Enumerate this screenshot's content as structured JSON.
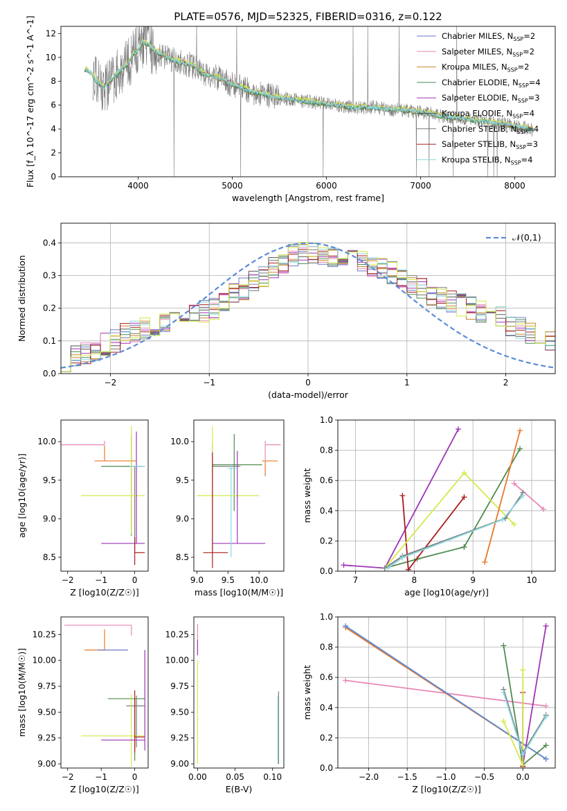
{
  "figure_title": "PLATE=0576, MJD=52325, FIBERID=0316, z=0.122",
  "colors": {
    "chabrier_miles": "#6a79c5",
    "salpeter_miles": "#e887b6",
    "kroupa_miles": "#c8852a",
    "chabrier_elodie": "#4c8a55",
    "salpeter_elodie": "#9c34b7",
    "kroupa_elodie": "#555555",
    "chabrier_stelib": "#7a7a7a",
    "salpeter_stelib": "#a81c1c",
    "kroupa_stelib": "#8dd8e0",
    "green_model": "#4f8a4f",
    "lime_model": "#d4e84a",
    "orange_model": "#e8782a",
    "normal_curve": "#5b8bd6",
    "grid": "#b0b0b0"
  },
  "chart_data": [
    {
      "id": "spectrum",
      "type": "line",
      "title": "PLATE=0576, MJD=52325, FIBERID=0316, z=0.122",
      "xlabel": "wavelength [Angstrom, rest frame]",
      "ylabel": "Flux [f_λ 10^-17 erg cm^-2 s^-1 A^-1]",
      "xlim": [
        3180,
        8430
      ],
      "ylim": [
        0,
        12.6
      ],
      "xticks": [
        4000,
        5000,
        6000,
        7000,
        8000
      ],
      "yticks": [
        0,
        2,
        4,
        6,
        8,
        10,
        12
      ],
      "grid": false,
      "legend_position": "top-right",
      "legend": [
        {
          "label": "Chabrier MILES",
          "sub": "2",
          "color": "#6a79c5"
        },
        {
          "label": "Salpeter MILES",
          "sub": "2",
          "color": "#e887b6"
        },
        {
          "label": "Kroupa MILES",
          "sub": "2",
          "color": "#c8852a"
        },
        {
          "label": "Chabrier ELODIE",
          "sub": "4",
          "color": "#4c8a55"
        },
        {
          "label": "Salpeter ELODIE",
          "sub": "3",
          "color": "#9c34b7"
        },
        {
          "label": "Kroupa ELODIE",
          "sub": "4",
          "color": "#555555"
        },
        {
          "label": "Chabrier STELIB",
          "sub": "4",
          "color": "#7a7a7a"
        },
        {
          "label": "Salpeter STELIB",
          "sub": "3",
          "color": "#a81c1c"
        },
        {
          "label": "Kroupa STELIB",
          "sub": "4",
          "color": "#8dd8e0"
        }
      ],
      "model_x": [
        3430,
        3460,
        3500,
        3560,
        3620,
        3680,
        3750,
        3820,
        3900,
        3950,
        4000,
        4050,
        4100,
        4200,
        4300,
        4400,
        4500,
        4600,
        4700,
        4800,
        4900,
        5000,
        5100,
        5200,
        5300,
        5400,
        5500,
        5600,
        5700,
        5800,
        5900,
        6000,
        6100,
        6200,
        6300,
        6400,
        6500,
        6600,
        6700,
        6800,
        6900,
        7000,
        7100,
        7200,
        7300,
        7400,
        7500,
        7600,
        7700,
        7800,
        7900,
        8000,
        8100,
        8200
      ],
      "model_y": [
        9.0,
        8.9,
        8.7,
        8.0,
        7.5,
        7.8,
        8.4,
        9.0,
        9.5,
        10.3,
        10.6,
        11.3,
        11.1,
        10.4,
        10.0,
        9.7,
        9.5,
        9.2,
        8.6,
        8.4,
        8.2,
        7.7,
        7.5,
        7.1,
        7.0,
        6.8,
        6.6,
        6.5,
        6.4,
        6.3,
        6.2,
        6.1,
        6.0,
        5.9,
        5.8,
        5.8,
        5.8,
        5.7,
        5.6,
        5.6,
        5.5,
        5.4,
        5.3,
        5.1,
        5.0,
        4.9,
        4.8,
        4.7,
        4.6,
        4.5,
        4.4,
        4.2,
        4.1,
        3.9
      ]
    },
    {
      "id": "residuals",
      "type": "histogram",
      "xlabel": "(data-model)/error",
      "ylabel": "Normed distribution",
      "xlim": [
        -2.5,
        2.5
      ],
      "ylim": [
        0,
        0.46
      ],
      "xticks": [
        -2,
        -1,
        0,
        1,
        2
      ],
      "yticks": [
        0.0,
        0.1,
        0.2,
        0.3,
        0.4
      ],
      "grid": true,
      "legend_position": "top-right",
      "legend_label": "𝒩(0,1)",
      "normal_curve": {
        "mu": 0,
        "sigma": 1
      },
      "bin_edges_start": -2.5,
      "bin_width": 0.1,
      "envelope": [
        0.04,
        0.05,
        0.06,
        0.07,
        0.09,
        0.1,
        0.12,
        0.13,
        0.14,
        0.15,
        0.16,
        0.17,
        0.17,
        0.18,
        0.19,
        0.2,
        0.22,
        0.24,
        0.26,
        0.28,
        0.3,
        0.32,
        0.34,
        0.36,
        0.37,
        0.37,
        0.36,
        0.36,
        0.35,
        0.35,
        0.34,
        0.33,
        0.32,
        0.31,
        0.29,
        0.27,
        0.26,
        0.24,
        0.23,
        0.22,
        0.21,
        0.2,
        0.19,
        0.18,
        0.17,
        0.15,
        0.14,
        0.12,
        0.11,
        0.1
      ]
    },
    {
      "id": "age_vs_Z",
      "type": "errorbar",
      "xlabel": "Z [log10(Z/Z☉)]",
      "ylabel": "age  [log10(age/yr)]",
      "xlim": [
        -2.2,
        0.4
      ],
      "ylim": [
        8.32,
        10.28
      ],
      "xticks": [
        -2,
        -1,
        0
      ],
      "yticks": [
        8.5,
        9.0,
        9.5,
        10.0
      ],
      "grid": false,
      "points": [
        {
          "x": -0.9,
          "y": 9.96,
          "xerr": [
            1.3,
            0.0
          ],
          "yerr": [
            0.0,
            0.05
          ],
          "color": "#e887b6"
        },
        {
          "x": -0.9,
          "y": 9.75,
          "xerr": [
            0.3,
            0.95
          ],
          "yerr": [
            0.0,
            0.2
          ],
          "color": "#e8782a"
        },
        {
          "x": -0.1,
          "y": 9.68,
          "xerr": [
            0.9,
            0.3
          ],
          "yerr": [
            0.9,
            0.4
          ],
          "color": "#4f8a4f"
        },
        {
          "x": 0.0,
          "y": 9.68,
          "xerr": [
            0.25,
            0.3
          ],
          "yerr": [
            1.1,
            0.0
          ],
          "color": "#7a7a7a"
        },
        {
          "x": -0.6,
          "y": 9.3,
          "xerr": [
            1.0,
            0.9
          ],
          "yerr": [
            0.0,
            0.0
          ],
          "color": "#d4e84a"
        },
        {
          "x": -0.1,
          "y": 9.3,
          "xerr": [
            0.0,
            0.0
          ],
          "yerr": [
            0.5,
            0.9
          ],
          "color": "#d4e84a"
        },
        {
          "x": 0.05,
          "y": 8.68,
          "xerr": [
            1.05,
            0.25
          ],
          "yerr": [
            0.0,
            1.45
          ],
          "color": "#9c34b7"
        },
        {
          "x": 0.0,
          "y": 8.56,
          "xerr": [
            0.0,
            0.3
          ],
          "yerr": [
            0.16,
            0.2
          ],
          "color": "#a81c1c"
        },
        {
          "x": 0.05,
          "y": 9.68,
          "xerr": [
            0.2,
            0.25
          ],
          "yerr": [
            0.0,
            0.0
          ],
          "color": "#8dd8e0"
        }
      ]
    },
    {
      "id": "age_vs_mass",
      "type": "errorbar",
      "xlabel": "mass [log10(M/M☉)]",
      "ylabel": "",
      "xlim": [
        8.95,
        10.4
      ],
      "ylim": [
        8.32,
        10.28
      ],
      "xticks": [
        9.0,
        9.5,
        10.0
      ],
      "yticks": [
        8.5,
        9.0,
        9.5,
        10.0
      ],
      "grid": false,
      "points": [
        {
          "x": 10.1,
          "y": 9.96,
          "xerr": [
            0.0,
            0.25
          ],
          "yerr": [
            0.2,
            0.05
          ],
          "color": "#e887b6"
        },
        {
          "x": 10.1,
          "y": 9.75,
          "xerr": [
            0.05,
            0.2
          ],
          "yerr": [
            0.2,
            0.0
          ],
          "color": "#e8782a"
        },
        {
          "x": 9.6,
          "y": 9.7,
          "xerr": [
            0.35,
            0.45
          ],
          "yerr": [
            0.6,
            0.4
          ],
          "color": "#4f8a4f"
        },
        {
          "x": 9.25,
          "y": 9.68,
          "xerr": [
            0.0,
            0.45
          ],
          "yerr": [
            1.1,
            0.3
          ],
          "color": "#7a7a7a"
        },
        {
          "x": 9.65,
          "y": 9.3,
          "xerr": [
            0.65,
            0.35
          ],
          "yerr": [
            0.0,
            0.0
          ],
          "color": "#d4e84a"
        },
        {
          "x": 9.25,
          "y": 9.3,
          "xerr": [
            0.0,
            0.0
          ],
          "yerr": [
            0.5,
            0.9
          ],
          "color": "#d4e84a"
        },
        {
          "x": 9.65,
          "y": 8.68,
          "xerr": [
            0.4,
            0.45
          ],
          "yerr": [
            0.0,
            1.2
          ],
          "color": "#9c34b7"
        },
        {
          "x": 9.25,
          "y": 8.56,
          "xerr": [
            0.15,
            0.25
          ],
          "yerr": [
            0.2,
            1.3
          ],
          "color": "#a81c1c"
        },
        {
          "x": 9.55,
          "y": 9.65,
          "xerr": [
            0.05,
            0.1
          ],
          "yerr": [
            1.15,
            0.05
          ],
          "color": "#8dd8e0"
        }
      ]
    },
    {
      "id": "weight_vs_age",
      "type": "line",
      "xlabel": "age  [log10(age/yr)]",
      "ylabel": "mass weight",
      "xlim": [
        6.7,
        10.4
      ],
      "ylim": [
        0,
        1.0
      ],
      "xticks": [
        7,
        8,
        9,
        10
      ],
      "yticks": [
        0.0,
        0.2,
        0.4,
        0.6,
        0.8,
        1.0
      ],
      "grid": true,
      "series": [
        {
          "x": [
            7.5,
            8.05,
            8.85
          ],
          "y": [
            0.02,
            0.08,
            0.16
          ],
          "color": "#4f8a4f"
        },
        {
          "x": [
            8.85,
            9.8
          ],
          "y": [
            0.16,
            0.81
          ],
          "color": "#4f8a4f"
        },
        {
          "x": [
            6.8,
            7.5,
            8.75
          ],
          "y": [
            0.04,
            0.02,
            0.94
          ],
          "color": "#9c34b7"
        },
        {
          "x": [
            7.8,
            7.9,
            8.85
          ],
          "y": [
            0.5,
            0.01,
            0.49
          ],
          "color": "#a81c1c"
        },
        {
          "x": [
            7.5,
            8.85,
            9.7
          ],
          "y": [
            0.02,
            0.65,
            0.31
          ],
          "color": "#d4e84a"
        },
        {
          "x": [
            9.2,
            9.8
          ],
          "y": [
            0.06,
            0.93
          ],
          "color": "#e8782a"
        },
        {
          "x": [
            9.7,
            10.2
          ],
          "y": [
            0.58,
            0.41
          ],
          "color": "#e887b6"
        },
        {
          "x": [
            7.5,
            7.8,
            9.55,
            9.85
          ],
          "y": [
            0.02,
            0.1,
            0.35,
            0.52
          ],
          "color": "#7a7a7a"
        },
        {
          "x": [
            7.55,
            7.8,
            9.5,
            9.85
          ],
          "y": [
            0.02,
            0.09,
            0.34,
            0.5
          ],
          "color": "#8dd8e0"
        }
      ]
    },
    {
      "id": "mass_vs_Z",
      "type": "errorbar",
      "xlabel": "Z [log10(Z/Z☉)]",
      "ylabel": "mass [log10(M/M☉)]",
      "xlim": [
        -2.2,
        0.4
      ],
      "ylim": [
        8.96,
        10.42
      ],
      "xticks": [
        -2,
        -1,
        0
      ],
      "yticks": [
        9.0,
        9.25,
        9.5,
        9.75,
        10.0,
        10.25
      ],
      "grid": false,
      "points": [
        {
          "x": -2.1,
          "y": 10.34,
          "xerr": [
            0.0,
            2.0
          ],
          "yerr": [
            0.0,
            0.0
          ],
          "color": "#e887b6"
        },
        {
          "x": -0.1,
          "y": 10.34,
          "xerr": [
            0.0,
            0.0
          ],
          "yerr": [
            0.1,
            0.0
          ],
          "color": "#e887b6"
        },
        {
          "x": -0.9,
          "y": 10.1,
          "xerr": [
            0.6,
            0.0
          ],
          "yerr": [
            0.0,
            0.2
          ],
          "color": "#e8782a"
        },
        {
          "x": -0.7,
          "y": 10.1,
          "xerr": [
            0.4,
            0.5
          ],
          "yerr": [
            0.0,
            0.0
          ],
          "color": "#6a79c5"
        },
        {
          "x": 0.0,
          "y": 9.63,
          "xerr": [
            0.8,
            0.3
          ],
          "yerr": [
            0.6,
            0.0
          ],
          "color": "#4f8a4f"
        },
        {
          "x": 0.05,
          "y": 9.56,
          "xerr": [
            0.3,
            0.25
          ],
          "yerr": [
            0.4,
            0.1
          ],
          "color": "#7a7a7a"
        },
        {
          "x": -0.1,
          "y": 9.27,
          "xerr": [
            1.5,
            0.4
          ],
          "yerr": [
            0.3,
            0.4
          ],
          "color": "#d4e84a"
        },
        {
          "x": 0.0,
          "y": 9.26,
          "xerr": [
            0.0,
            0.3
          ],
          "yerr": [
            0.15,
            0.45
          ],
          "color": "#a81c1c"
        },
        {
          "x": 0.0,
          "y": 9.23,
          "xerr": [
            1.0,
            0.3
          ],
          "yerr": [
            0.0,
            0.0
          ],
          "color": "#9c34b7"
        },
        {
          "x": 0.3,
          "y": 9.23,
          "xerr": [
            0.0,
            0.0
          ],
          "yerr": [
            0.1,
            0.87
          ],
          "color": "#9c34b7"
        }
      ]
    },
    {
      "id": "mass_vs_ebv",
      "type": "errorbar",
      "xlabel": "E(B-V)",
      "ylabel": "",
      "xlim": [
        -0.005,
        0.115
      ],
      "ylim": [
        8.96,
        10.42
      ],
      "xticks": [
        0.0,
        0.05,
        0.1
      ],
      "yticks": [
        9.0,
        9.25,
        9.5,
        9.75,
        10.0,
        10.25
      ],
      "grid": false,
      "points": [
        {
          "x": 0.0,
          "y": 10.2,
          "xerr": [
            0.0,
            0.0
          ],
          "yerr": [
            0.15,
            0.15
          ],
          "color": "#e887b6"
        },
        {
          "x": 0.0,
          "y": 10.1,
          "xerr": [
            0.0,
            0.0
          ],
          "yerr": [
            0.05,
            0.1
          ],
          "color": "#9c34b7"
        },
        {
          "x": 0.0,
          "y": 9.5,
          "xerr": [
            0.0,
            0.0
          ],
          "yerr": [
            0.5,
            0.5
          ],
          "color": "#d4e84a"
        },
        {
          "x": 0.108,
          "y": 9.35,
          "xerr": [
            0.0,
            0.0
          ],
          "yerr": [
            0.35,
            0.35
          ],
          "color": "#7a7a7a"
        },
        {
          "x": 0.107,
          "y": 9.3,
          "xerr": [
            0.0,
            0.0
          ],
          "yerr": [
            0.3,
            0.35
          ],
          "color": "#8dd8e0"
        }
      ]
    },
    {
      "id": "weight_vs_Z",
      "type": "line",
      "xlabel": "Z [log10(Z/Z☉)]",
      "ylabel": "mass weight",
      "xlim": [
        -2.4,
        0.42
      ],
      "ylim": [
        0,
        1.0
      ],
      "xticks": [
        -2.0,
        -1.5,
        -1.0,
        -0.5,
        0.0
      ],
      "yticks": [
        0.0,
        0.2,
        0.4,
        0.6,
        0.8,
        1.0
      ],
      "grid": true,
      "series": [
        {
          "x": [
            -2.3,
            0.3
          ],
          "y": [
            0.58,
            0.41
          ],
          "color": "#e887b6"
        },
        {
          "x": [
            -2.3,
            0.3
          ],
          "y": [
            0.93,
            0.06
          ],
          "color": "#e8782a"
        },
        {
          "x": [
            -2.3,
            0.3
          ],
          "y": [
            0.94,
            0.06
          ],
          "color": "#5b8bd6"
        },
        {
          "x": [
            -0.25,
            0.0,
            0.3
          ],
          "y": [
            0.81,
            0.02,
            0.15
          ],
          "color": "#4f8a4f"
        },
        {
          "x": [
            0.0,
            0.3
          ],
          "y": [
            0.02,
            0.94
          ],
          "color": "#9c34b7"
        },
        {
          "x": [
            0.0,
            0.0
          ],
          "y": [
            0.01,
            0.5
          ],
          "color": "#a81c1c"
        },
        {
          "x": [
            -0.25,
            0.0,
            0.0
          ],
          "y": [
            0.31,
            0.02,
            0.65
          ],
          "color": "#d4e84a"
        },
        {
          "x": [
            -0.25,
            0.0,
            0.3
          ],
          "y": [
            0.52,
            0.1,
            0.35
          ],
          "color": "#7a7a7a"
        },
        {
          "x": [
            -0.25,
            0.0,
            0.3
          ],
          "y": [
            0.5,
            0.09,
            0.34
          ],
          "color": "#8dd8e0"
        }
      ]
    }
  ]
}
